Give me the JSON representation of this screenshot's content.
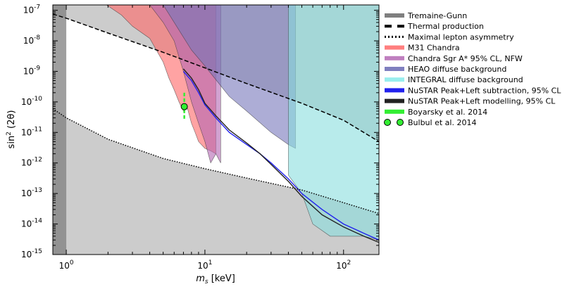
{
  "chart_data": {
    "type": "area",
    "xlabel": "m_s [keV]",
    "xlabel_main": "m",
    "xlabel_sub": "s",
    "xlabel_unit": " [keV]",
    "ylabel": "sin^2(2θ)",
    "ylabel_main": "sin",
    "ylabel_sup": "2",
    "ylabel_rest": " (2θ)",
    "xscale": "log",
    "yscale": "log",
    "xlim": [
      0.8,
      180
    ],
    "ylim": [
      1e-15,
      1.5e-07
    ],
    "legend_position": "right-outside",
    "x_ticks": [
      {
        "value": 1,
        "base": "10",
        "exp": "0"
      },
      {
        "value": 10,
        "base": "10",
        "exp": "1"
      },
      {
        "value": 100,
        "base": "10",
        "exp": "2"
      }
    ],
    "y_ticks": [
      {
        "value": 1e-15,
        "base": "10",
        "exp": "-15"
      },
      {
        "value": 1e-14,
        "base": "10",
        "exp": "-14"
      },
      {
        "value": 1e-13,
        "base": "10",
        "exp": "-13"
      },
      {
        "value": 1e-12,
        "base": "10",
        "exp": "-12"
      },
      {
        "value": 1e-11,
        "base": "10",
        "exp": "-11"
      },
      {
        "value": 1e-10,
        "base": "10",
        "exp": "-10"
      },
      {
        "value": 1e-09,
        "base": "10",
        "exp": "-9"
      },
      {
        "value": 1e-08,
        "base": "10",
        "exp": "-8"
      },
      {
        "value": 1e-07,
        "base": "10",
        "exp": "-7"
      }
    ],
    "series": [
      {
        "name": "Tremaine-Gunn",
        "style": "band",
        "color": "#7f7f7f",
        "x_max": 1.0
      },
      {
        "name": "Thermal production",
        "style": "dashed",
        "color": "#000000",
        "x": [
          0.8,
          1,
          2,
          5,
          10,
          20,
          50,
          100,
          180
        ],
        "y": [
          7.5e-08,
          5.5e-08,
          1.8e-08,
          4.2e-09,
          1.3e-09,
          4e-10,
          9e-11,
          2.5e-11,
          5e-12
        ]
      },
      {
        "name": "Maximal lepton asymmetry",
        "style": "dotted",
        "color": "#000000",
        "x": [
          0.8,
          1,
          2,
          5,
          10,
          20,
          50,
          100,
          180
        ],
        "y": [
          6e-11,
          3e-11,
          6e-12,
          1.4e-12,
          6.5e-13,
          3.2e-13,
          1.3e-13,
          5e-14,
          2.2e-14
        ]
      },
      {
        "name": "M31 Chandra",
        "style": "fill",
        "color": "#ff6666",
        "x": [
          1.95,
          2.5,
          3,
          4,
          5,
          5.5,
          6,
          6.5,
          7,
          7.5,
          8,
          8.5,
          9,
          10,
          11,
          12
        ],
        "y": [
          1.5e-07,
          7e-08,
          3e-08,
          1.2e-08,
          2e-09,
          6e-10,
          2.5e-10,
          1e-10,
          5e-11,
          6e-11,
          2e-11,
          1e-11,
          5e-12,
          3e-12,
          2.5e-12,
          2e-12
        ]
      },
      {
        "name": "Chandra Sgr A* 95% CL, NFW",
        "style": "fill",
        "color": "#b266b2",
        "x": [
          4,
          5,
          6,
          7,
          8,
          9,
          10,
          11,
          12,
          13
        ],
        "y": [
          1.5e-07,
          4e-08,
          1e-08,
          1e-09,
          1e-10,
          2e-11,
          5e-12,
          1e-12,
          2e-12,
          1e-12
        ]
      },
      {
        "name": "HEAO diffuse background",
        "style": "fill",
        "color": "#7777bb",
        "x": [
          5,
          8,
          10,
          15,
          20,
          30,
          40,
          45
        ],
        "y": [
          1.5e-07,
          5e-09,
          1.5e-09,
          1.5e-10,
          5e-11,
          1e-11,
          4e-12,
          3e-12
        ]
      },
      {
        "name": "INTEGRAL diffuse background",
        "style": "fill",
        "color": "#88dddd",
        "x": [
          40,
          50,
          60,
          80,
          100,
          140,
          180
        ],
        "y": [
          4e-13,
          1e-13,
          1e-14,
          4e-15,
          4e-15,
          4e-15,
          3e-15
        ]
      },
      {
        "name": "NuSTAR Peak+Left subtraction, 95% CL",
        "style": "line",
        "color": "#2222ee",
        "x": [
          7,
          8,
          9,
          10,
          12,
          15,
          20,
          25,
          30,
          40,
          50,
          70,
          100,
          140,
          180
        ],
        "y": [
          1e-09,
          5e-10,
          2e-10,
          8e-11,
          3e-11,
          1e-11,
          4e-12,
          2e-12,
          1e-12,
          3e-13,
          1e-13,
          3e-14,
          1e-14,
          5e-15,
          3e-15
        ]
      },
      {
        "name": "NuSTAR Peak+Left modelling, 95% CL",
        "style": "line",
        "color": "#222222",
        "x": [
          7,
          8,
          9,
          10,
          12,
          15,
          20,
          25,
          30,
          40,
          50,
          70,
          100,
          140,
          180
        ],
        "y": [
          1.2e-09,
          6e-10,
          2.5e-10,
          9e-11,
          3.5e-11,
          1.2e-11,
          4.5e-12,
          2e-12,
          9e-13,
          2.5e-13,
          8e-14,
          2e-14,
          8e-15,
          4e-15,
          2.5e-15
        ]
      },
      {
        "name": "Boyarsky et al. 2014",
        "style": "errorbar",
        "color": "#33ee33",
        "x": [
          7.1
        ],
        "y": [
          7e-11
        ],
        "y_low": 2.5e-11,
        "y_high": 2e-10
      },
      {
        "name": "Bulbul et al. 2014",
        "style": "marker",
        "color": "#33ee33",
        "x": [
          7.1
        ],
        "y": [
          7e-11
        ]
      }
    ],
    "legend": [
      {
        "label": "Tremaine-Gunn",
        "marker": "bar",
        "color": "#7f7f7f"
      },
      {
        "label": "Thermal production",
        "marker": "dashed",
        "color": "#000000"
      },
      {
        "label": "Maximal lepton asymmetry",
        "marker": "dotted",
        "color": "#000000"
      },
      {
        "label": "M31 Chandra",
        "marker": "bar",
        "color": "#ff7f7f"
      },
      {
        "label": "Chandra Sgr A* 95% CL, NFW",
        "marker": "bar",
        "color": "#bf7fbf"
      },
      {
        "label": "HEAO diffuse background",
        "marker": "bar",
        "color": "#7f7fbf"
      },
      {
        "label": "INTEGRAL diffuse background",
        "marker": "bar",
        "color": "#99eeee"
      },
      {
        "label": "NuSTAR Peak+Left subtraction, 95% CL",
        "marker": "bar",
        "color": "#2222ee"
      },
      {
        "label": "NuSTAR Peak+Left modelling, 95% CL",
        "marker": "bar",
        "color": "#222222"
      },
      {
        "label": "Boyarsky et al. 2014",
        "marker": "bar",
        "color": "#33ee33"
      },
      {
        "label": "Bulbul et al. 2014",
        "marker": "circles",
        "color": "#33ee33"
      }
    ]
  }
}
